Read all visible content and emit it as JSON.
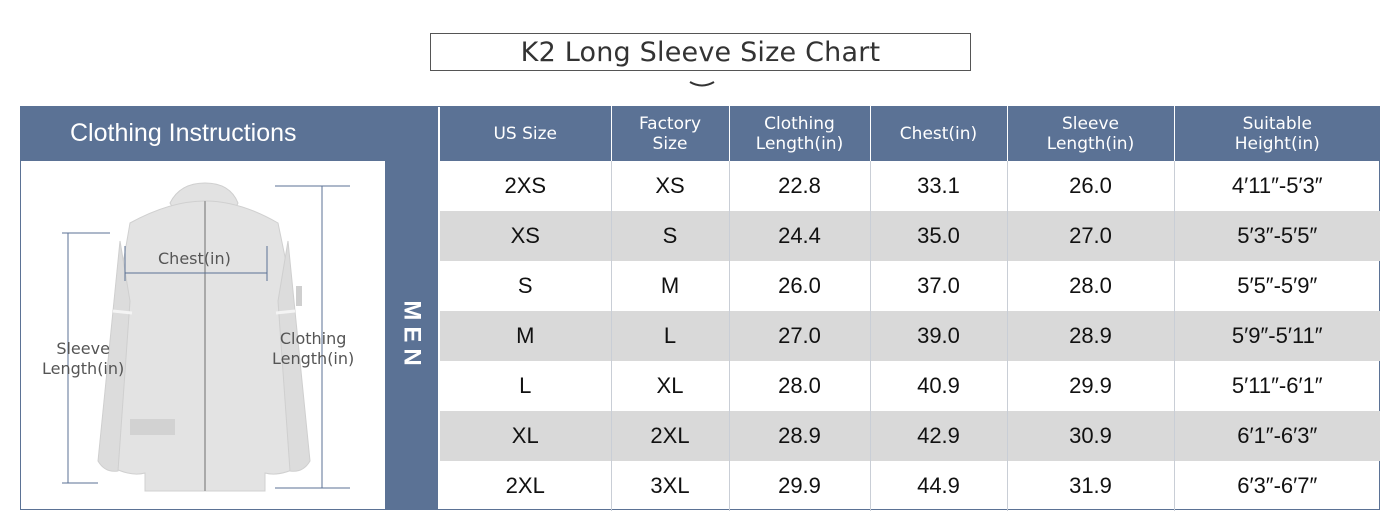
{
  "title": "K2 Long Sleeve Size Chart",
  "left_header": "Clothing Instructions",
  "gender_label": "MEN",
  "figure": {
    "chest_label": "Chest(in)",
    "sleeve_label_line1": "Sleeve",
    "sleeve_label_line2": "Length(in)",
    "clothing_label_line1": "Clothing",
    "clothing_label_line2": "Length(in)"
  },
  "table": {
    "headers": [
      [
        "US Size"
      ],
      [
        "Factory",
        "Size"
      ],
      [
        "Clothing",
        "Length(in)"
      ],
      [
        "Chest(in)"
      ],
      [
        "Sleeve",
        "Length(in)"
      ],
      [
        "Suitable",
        "Height(in)"
      ]
    ],
    "rows": [
      [
        "2XS",
        "XS",
        "22.8",
        "33.1",
        "26.0",
        "4′11″-5′3″"
      ],
      [
        "XS",
        "S",
        "24.4",
        "35.0",
        "27.0",
        "5′3″-5′5″"
      ],
      [
        "S",
        "M",
        "26.0",
        "37.0",
        "28.0",
        "5′5″-5′9″"
      ],
      [
        "M",
        "L",
        "27.0",
        "39.0",
        "28.9",
        "5′9″-5′11″"
      ],
      [
        "L",
        "XL",
        "28.0",
        "40.9",
        "29.9",
        "5′11″-6′1″"
      ],
      [
        "XL",
        "2XL",
        "28.9",
        "42.9",
        "30.9",
        "6′1″-6′3″"
      ],
      [
        "2XL",
        "3XL",
        "29.9",
        "44.9",
        "31.9",
        "6′3″-6′7″"
      ]
    ]
  },
  "colors": {
    "header_blue": "#5b7295",
    "alt_row": "#d9d9d9",
    "garment": "#e3e3e3"
  }
}
